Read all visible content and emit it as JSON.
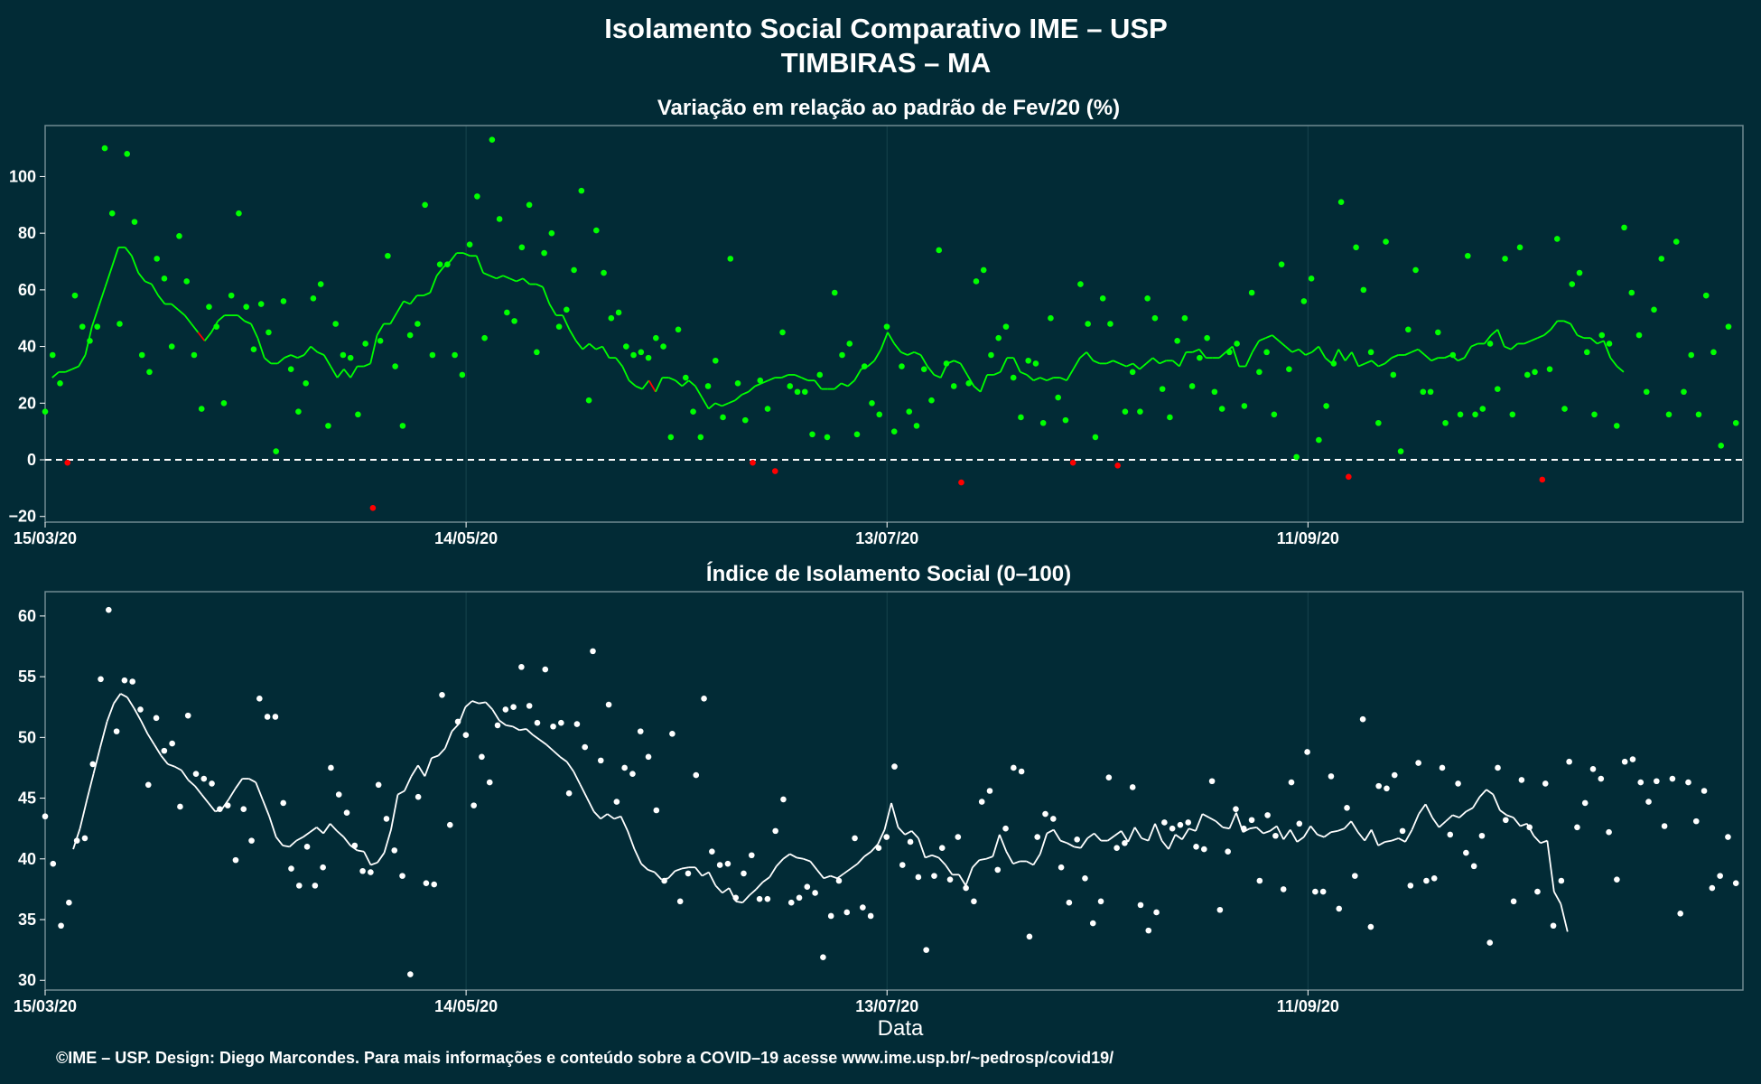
{
  "title": "Isolamento Social Comparativo IME – USP",
  "subtitle": "TIMBIRAS – MA",
  "xlabel": "Data",
  "footer": "©IME – USP. Design: Diego Marcondes. Para mais informações e conteúdo sobre a COVID–19 acesse www.ime.usp.br/~pedrosp/covid19/",
  "colors": {
    "background": "#022b36",
    "positive": "#00ff00",
    "negative": "#ff0000",
    "index": "#ffffff",
    "panel_border": "#6f8a90",
    "gridline": "#17434d"
  },
  "x_ticks": [
    "15/03/20",
    "14/05/20",
    "13/07/20",
    "11/09/20"
  ],
  "chart_data": [
    {
      "type": "scatter",
      "title": "Variação em relação ao padrão de Fev/20 (%)",
      "x_start": "15/03/20",
      "x_step_days": 1,
      "xlim": [
        "15/03/20",
        "11/11/20"
      ],
      "ylim": [
        -22,
        118
      ],
      "y_ticks": [
        -20,
        0,
        20,
        40,
        60,
        80,
        100
      ],
      "reference_line": 0,
      "series": [
        {
          "values": [
            17,
            37,
            27,
            -1,
            58,
            47,
            42,
            47,
            110,
            87,
            48,
            108,
            84,
            37,
            31,
            71,
            64,
            40,
            79,
            63,
            37,
            18,
            54,
            47,
            20,
            58,
            87,
            54,
            39,
            55,
            45,
            3,
            56,
            32,
            17,
            27,
            57,
            62,
            12,
            48,
            37,
            36,
            16,
            41,
            -17,
            42,
            72,
            33,
            12,
            44,
            48,
            90,
            37,
            69,
            69,
            37,
            30,
            76,
            93,
            43,
            113,
            85,
            52,
            49,
            75,
            90,
            38,
            73,
            80,
            47,
            53,
            67,
            95,
            21,
            81,
            66,
            50,
            52,
            40,
            37,
            38,
            36,
            43,
            40,
            8,
            46,
            29,
            17,
            8,
            26,
            35,
            15,
            71,
            27,
            14,
            -1,
            28,
            18,
            -4,
            45,
            26,
            24,
            24,
            9,
            30,
            8,
            59,
            37,
            41,
            9,
            33,
            20,
            16,
            47,
            10,
            33,
            17,
            12,
            32,
            21,
            74,
            34,
            26,
            -8,
            27,
            63,
            67,
            37,
            43,
            47,
            29,
            15,
            35,
            34,
            13,
            50,
            22,
            14,
            -1,
            62,
            48,
            8,
            57,
            48,
            -2,
            17,
            31,
            17,
            57,
            50,
            25,
            15,
            42,
            50,
            26,
            36,
            43,
            24,
            18,
            38,
            41,
            19,
            59,
            31,
            38,
            16,
            69,
            32,
            1,
            56,
            64,
            7,
            19,
            34,
            91,
            -6,
            75,
            60,
            38,
            13,
            77,
            30,
            3,
            46,
            67,
            24,
            24,
            45,
            13,
            37,
            16,
            72,
            16,
            18,
            41,
            25,
            71,
            16,
            75,
            30,
            31,
            -7,
            32,
            78,
            18,
            62,
            66,
            38,
            16,
            44,
            41,
            12,
            82,
            59,
            44,
            24,
            53,
            71,
            16,
            77,
            24,
            37,
            16,
            58,
            38,
            5,
            47,
            13
          ]
        },
        {
          "name_hidden": "media_movel",
          "values": [
            29,
            31,
            31,
            32,
            33,
            37,
            47,
            54,
            61,
            68,
            75,
            75,
            72,
            66,
            63,
            62,
            58,
            55,
            55,
            53,
            51,
            48,
            45,
            42,
            45,
            49,
            51,
            51,
            51,
            49,
            48,
            43,
            36,
            34,
            34,
            36,
            37,
            36,
            37,
            40,
            38,
            37,
            33,
            29,
            32,
            29,
            33,
            33,
            34,
            44,
            48,
            48,
            52,
            56,
            55,
            58,
            58,
            59,
            65,
            68,
            70,
            73,
            73,
            72,
            72,
            66,
            65,
            64,
            65,
            64,
            63,
            64,
            62,
            62,
            61,
            55,
            51,
            51,
            46,
            42,
            39,
            41,
            39,
            40,
            36,
            36,
            33,
            28,
            26,
            25,
            28,
            24,
            29,
            29,
            28,
            26,
            28,
            26,
            22,
            18,
            20,
            19,
            20,
            21,
            23,
            24,
            26,
            27,
            28,
            29,
            29,
            30,
            30,
            29,
            28,
            28,
            25,
            25,
            25,
            27,
            26,
            28,
            32,
            33,
            35,
            39,
            45,
            41,
            38,
            37,
            38,
            37,
            33,
            30,
            29,
            34,
            35,
            34,
            30,
            26,
            24,
            30,
            30,
            31,
            36,
            36,
            31,
            30,
            28,
            29,
            28,
            29,
            29,
            28,
            32,
            36,
            38,
            35,
            34,
            34,
            35,
            34,
            33,
            34,
            32,
            34,
            36,
            34,
            35,
            35,
            33,
            38,
            38,
            39,
            36,
            36,
            36,
            38,
            40,
            33,
            33,
            38,
            42,
            43,
            44,
            42,
            40,
            38,
            39,
            37,
            38,
            40,
            36,
            34,
            39,
            35,
            38,
            33,
            34,
            35,
            33,
            34,
            36,
            37,
            37,
            38,
            39,
            37,
            35,
            36,
            36,
            37,
            35,
            36,
            40,
            41,
            41,
            44,
            46,
            40,
            39,
            41,
            41,
            42,
            43,
            44,
            46,
            49,
            49,
            48,
            44,
            43,
            43,
            41,
            42,
            36,
            33,
            31
          ]
        }
      ]
    },
    {
      "type": "scatter",
      "title": "Índice de Isolamento Social (0–100)",
      "x_start": "15/03/20",
      "x_step_days": 1,
      "xlim": [
        "15/03/20",
        "11/11/20"
      ],
      "ylim": [
        29.2,
        62
      ],
      "y_ticks": [
        30,
        35,
        40,
        45,
        50,
        55,
        60
      ],
      "series": [
        {
          "values": [
            43.5,
            39.6,
            34.5,
            36.4,
            41.5,
            41.7,
            47.8,
            54.8,
            60.5,
            50.5,
            54.7,
            54.6,
            52.3,
            46.1,
            51.6,
            48.9,
            49.5,
            44.3,
            51.8,
            47.0,
            46.6,
            46.2,
            44.1,
            44.4,
            39.9,
            44.1,
            41.5,
            53.2,
            51.7,
            51.7,
            44.6,
            39.2,
            37.8,
            41.0,
            37.8,
            39.3,
            47.5,
            45.3,
            43.8,
            41.1,
            39.0,
            38.9,
            46.1,
            43.3,
            40.7,
            38.6,
            30.5,
            45.1,
            38.0,
            37.9,
            53.5,
            42.8,
            51.3,
            50.2,
            44.4,
            48.4,
            46.3,
            51.0,
            52.3,
            52.5,
            55.8,
            52.6,
            51.2,
            55.6,
            50.9,
            51.2,
            45.4,
            51.1,
            49.2,
            57.1,
            48.1,
            52.7,
            44.7,
            47.5,
            47.0,
            50.5,
            48.4,
            44.0,
            38.2,
            50.3,
            36.5,
            38.8,
            46.9,
            53.2,
            40.6,
            39.5,
            39.6,
            36.8,
            38.8,
            40.3,
            36.7,
            36.7,
            42.3,
            44.9,
            36.4,
            36.8,
            37.7,
            37.2,
            31.9,
            35.3,
            38.2,
            35.6,
            41.7,
            36.0,
            35.3,
            40.9,
            41.8,
            47.6,
            39.5,
            41.4,
            38.5,
            32.5,
            38.6,
            40.9,
            38.3,
            41.8,
            37.6,
            36.5,
            44.7,
            45.6,
            39.1,
            42.5,
            47.5,
            47.2,
            33.6,
            41.8,
            43.7,
            43.3,
            39.3,
            36.4,
            41.6,
            38.4,
            34.7,
            36.5,
            46.7,
            40.9,
            41.3,
            45.9,
            36.2,
            34.1,
            35.6,
            43.0,
            42.5,
            42.8,
            43.0,
            41.0,
            40.8,
            46.4,
            35.8,
            40.6,
            44.1,
            42.5,
            43.2,
            38.2,
            43.6,
            41.9,
            37.5,
            46.3,
            42.9,
            48.8,
            37.3,
            37.3,
            46.8,
            35.9,
            44.2,
            38.6,
            51.5,
            34.4,
            46.0,
            45.8,
            46.9,
            42.3,
            37.8,
            47.9,
            38.2,
            38.4,
            47.5,
            42.0,
            46.2,
            40.5,
            39.4,
            41.9,
            33.1,
            47.5,
            43.2,
            36.5,
            46.5,
            42.6,
            37.3,
            46.2,
            34.5,
            38.2,
            48.0,
            42.6,
            44.6,
            47.4,
            46.6,
            42.2,
            38.3,
            48.0,
            48.2,
            46.3,
            44.7,
            46.4,
            42.7,
            46.6,
            35.5,
            46.3,
            43.1,
            45.6,
            37.6,
            38.6,
            41.8,
            38.0
          ]
        },
        {
          "name_hidden": "media_movel",
          "values": [
            40.8,
            42.5,
            44.8,
            47.0,
            49.2,
            51.3,
            52.8,
            53.6,
            53.3,
            52.4,
            51.4,
            50.3,
            49.4,
            48.5,
            47.8,
            47.6,
            47.3,
            46.5,
            46.0,
            45.3,
            44.6,
            43.9,
            44.1,
            44.9,
            45.8,
            46.6,
            46.6,
            46.3,
            44.9,
            43.5,
            41.8,
            41.1,
            41.0,
            41.5,
            41.8,
            42.2,
            42.6,
            42.1,
            42.9,
            42.3,
            41.8,
            41.1,
            40.7,
            40.6,
            39.5,
            39.7,
            40.5,
            42.4,
            45.3,
            45.6,
            46.8,
            47.7,
            46.8,
            48.3,
            48.5,
            49.1,
            50.5,
            51.1,
            52.5,
            53.0,
            52.8,
            52.9,
            52.3,
            51.4,
            51.0,
            50.9,
            50.6,
            50.7,
            50.2,
            49.8,
            49.4,
            48.9,
            48.4,
            48.0,
            47.2,
            46.1,
            45.0,
            43.9,
            43.3,
            43.7,
            43.3,
            43.5,
            42.3,
            40.8,
            39.6,
            39.1,
            38.9,
            38.3,
            38.4,
            39.0,
            39.2,
            39.3,
            39.3,
            38.6,
            38.9,
            37.8,
            37.2,
            37.6,
            36.5,
            36.4,
            37.0,
            37.5,
            38.1,
            38.5,
            39.4,
            40.0,
            40.4,
            40.1,
            40.0,
            39.8,
            39.1,
            38.4,
            38.6,
            38.4,
            38.8,
            39.2,
            39.6,
            40.2,
            40.6,
            41.2,
            42.4,
            44.6,
            42.6,
            42.0,
            42.3,
            41.7,
            40.1,
            40.3,
            40.1,
            39.5,
            38.7,
            38.7,
            37.8,
            39.3,
            39.9,
            40.0,
            40.2,
            42.0,
            40.6,
            39.6,
            39.8,
            39.8,
            39.5,
            40.4,
            42.1,
            42.4,
            41.5,
            41.3,
            41.0,
            40.9,
            41.7,
            42.1,
            41.5,
            41.5,
            41.9,
            42.3,
            41.4,
            42.6,
            41.7,
            41.5,
            42.9,
            41.5,
            40.8,
            42.0,
            41.6,
            42.5,
            42.3,
            43.7,
            43.4,
            43.1,
            42.6,
            42.5,
            43.8,
            42.2,
            42.5,
            42.6,
            42.1,
            42.3,
            42.7,
            41.6,
            42.4,
            41.4,
            41.8,
            42.7,
            42.0,
            41.8,
            42.2,
            42.3,
            42.5,
            43.1,
            42.2,
            41.5,
            42.4,
            41.1,
            41.4,
            41.5,
            41.7,
            41.4,
            42.4,
            43.7,
            44.5,
            43.4,
            42.6,
            43.1,
            43.6,
            43.4,
            43.9,
            44.2,
            45.1,
            45.7,
            45.3,
            44.0,
            43.6,
            43.4,
            42.7,
            42.9,
            41.9,
            41.3,
            41.5,
            37.3,
            36.3,
            34.0
          ]
        }
      ]
    }
  ]
}
